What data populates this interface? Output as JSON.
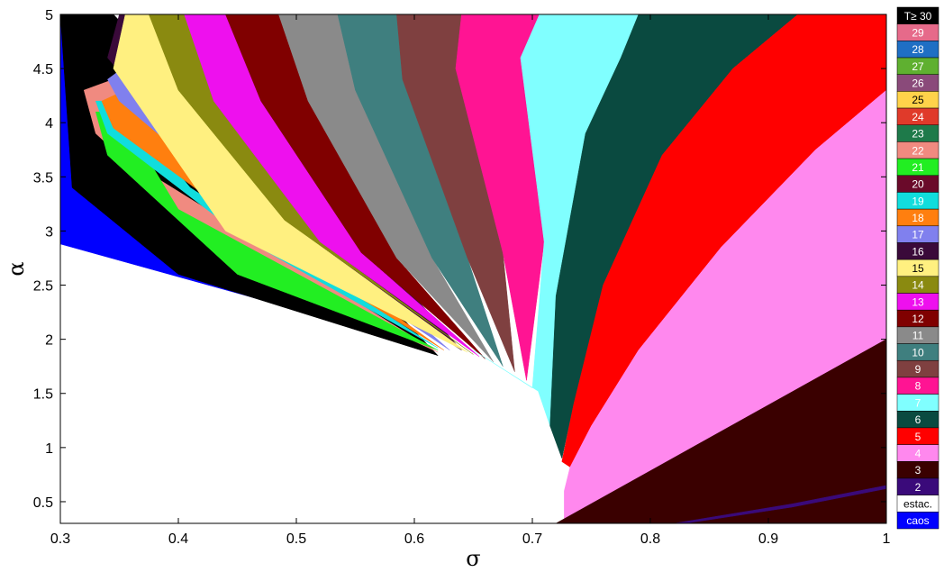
{
  "chart_data": {
    "type": "heatmap",
    "xlabel": "σ",
    "ylabel": "α",
    "xlim": [
      0.3,
      1
    ],
    "ylim": [
      0.3,
      5
    ],
    "xticks": [
      "0.3",
      "0.4",
      "0.5",
      "0.6",
      "0.7",
      "0.8",
      "0.9",
      "1"
    ],
    "yticks": [
      "0.5",
      "1",
      "1.5",
      "2",
      "2.5",
      "3",
      "3.5",
      "4",
      "4.5",
      "5"
    ],
    "legend": [
      {
        "label": "T≥ 30",
        "color": "#000000",
        "text_color": "#ffffff"
      },
      {
        "label": "29",
        "color": "#e66a8a",
        "text_color": "#ffffff"
      },
      {
        "label": "28",
        "color": "#1f6fc4",
        "text_color": "#ffffff"
      },
      {
        "label": "27",
        "color": "#5fb030",
        "text_color": "#ffffff"
      },
      {
        "label": "26",
        "color": "#8a4a7a",
        "text_color": "#ffffff"
      },
      {
        "label": "25",
        "color": "#ffd24a",
        "text_color": "#000000"
      },
      {
        "label": "24",
        "color": "#e03a2a",
        "text_color": "#ffffff"
      },
      {
        "label": "23",
        "color": "#1e7a4a",
        "text_color": "#ffffff"
      },
      {
        "label": "22",
        "color": "#f08a80",
        "text_color": "#ffffff"
      },
      {
        "label": "21",
        "color": "#22ee22",
        "text_color": "#ffffff"
      },
      {
        "label": "20",
        "color": "#6a0a2a",
        "text_color": "#ffffff"
      },
      {
        "label": "19",
        "color": "#11dddd",
        "text_color": "#ffffff"
      },
      {
        "label": "18",
        "color": "#ff7f0f",
        "text_color": "#ffffff"
      },
      {
        "label": "17",
        "color": "#8080ee",
        "text_color": "#ffffff"
      },
      {
        "label": "16",
        "color": "#3a0a3a",
        "text_color": "#ffffff"
      },
      {
        "label": "15",
        "color": "#fff080",
        "text_color": "#000000"
      },
      {
        "label": "14",
        "color": "#8a8a10",
        "text_color": "#ffffff"
      },
      {
        "label": "13",
        "color": "#ee10ee",
        "text_color": "#ffffff"
      },
      {
        "label": "12",
        "color": "#800000",
        "text_color": "#ffffff"
      },
      {
        "label": "11",
        "color": "#8a8a8a",
        "text_color": "#ffffff"
      },
      {
        "label": "10",
        "color": "#3f7f7f",
        "text_color": "#ffffff"
      },
      {
        "label": "9",
        "color": "#7f4040",
        "text_color": "#ffffff"
      },
      {
        "label": "8",
        "color": "#ff1493",
        "text_color": "#ffffff"
      },
      {
        "label": "7",
        "color": "#80ffff",
        "text_color": "#ffffff"
      },
      {
        "label": "6",
        "color": "#0a4a40",
        "text_color": "#ffffff"
      },
      {
        "label": "5",
        "color": "#ff0000",
        "text_color": "#ffffff"
      },
      {
        "label": "4",
        "color": "#ff88ee",
        "text_color": "#ffffff"
      },
      {
        "label": "3",
        "color": "#3a0000",
        "text_color": "#ffffff"
      },
      {
        "label": "2",
        "color": "#3a0a7a",
        "text_color": "#ffffff"
      },
      {
        "label": "estac.",
        "color": "#ffffff",
        "text_color": "#000000"
      },
      {
        "label": "caos",
        "color": "#0000ff",
        "text_color": "#ffffff"
      }
    ],
    "regions": [
      {
        "period": "caos",
        "color": "#0000ff",
        "points": [
          [
            0.3,
            5
          ],
          [
            0.3,
            2.88
          ],
          [
            0.475,
            2.35
          ],
          [
            0.58,
            2.0
          ],
          [
            0.56,
            2.18
          ],
          [
            0.42,
            3.7
          ],
          [
            0.34,
            5
          ]
        ]
      },
      {
        "period": "T≥ 30",
        "color": "#000000",
        "points": [
          [
            0.3,
            5
          ],
          [
            0.31,
            3.4
          ],
          [
            0.4,
            2.6
          ],
          [
            0.62,
            1.85
          ],
          [
            0.345,
            5
          ]
        ]
      },
      {
        "period": "22",
        "color": "#f08a80",
        "points": [
          [
            0.32,
            4.3
          ],
          [
            0.33,
            3.9
          ],
          [
            0.44,
            2.8
          ],
          [
            0.62,
            1.88
          ],
          [
            0.38,
            3.5
          ],
          [
            0.345,
            4.4
          ]
        ]
      },
      {
        "period": "21",
        "color": "#22ee22",
        "points": [
          [
            0.33,
            4.1
          ],
          [
            0.34,
            3.7
          ],
          [
            0.45,
            2.6
          ],
          [
            0.62,
            1.9
          ],
          [
            0.4,
            3.2
          ],
          [
            0.35,
            4.1
          ]
        ]
      },
      {
        "period": "19",
        "color": "#11dddd",
        "points": [
          [
            0.33,
            4.2
          ],
          [
            0.34,
            3.9
          ],
          [
            0.46,
            2.9
          ],
          [
            0.62,
            1.92
          ],
          [
            0.41,
            3.4
          ],
          [
            0.35,
            4.2
          ]
        ]
      },
      {
        "period": "18",
        "color": "#ff7f0f",
        "points": [
          [
            0.335,
            4.2
          ],
          [
            0.345,
            3.95
          ],
          [
            0.47,
            2.95
          ],
          [
            0.625,
            1.9
          ],
          [
            0.42,
            3.5
          ],
          [
            0.355,
            4.3
          ]
        ]
      },
      {
        "period": "17",
        "color": "#8080ee",
        "points": [
          [
            0.34,
            4.4
          ],
          [
            0.35,
            4.2
          ],
          [
            0.48,
            3.0
          ],
          [
            0.63,
            1.9
          ],
          [
            0.44,
            3.7
          ],
          [
            0.365,
            4.6
          ]
        ]
      },
      {
        "period": "16",
        "color": "#3a0a3a",
        "points": [
          [
            0.35,
            5
          ],
          [
            0.34,
            4.6
          ],
          [
            0.45,
            3.2
          ],
          [
            0.64,
            1.9
          ],
          [
            0.39,
            5
          ]
        ]
      },
      {
        "period": "15",
        "color": "#fff080",
        "points": [
          [
            0.355,
            5
          ],
          [
            0.345,
            4.5
          ],
          [
            0.44,
            3.0
          ],
          [
            0.645,
            1.88
          ],
          [
            0.49,
            3.1
          ],
          [
            0.4,
            4.3
          ],
          [
            0.375,
            5
          ]
        ]
      },
      {
        "period": "14",
        "color": "#8a8a10",
        "points": [
          [
            0.375,
            5
          ],
          [
            0.4,
            4.3
          ],
          [
            0.49,
            3.1
          ],
          [
            0.65,
            1.86
          ],
          [
            0.52,
            2.9
          ],
          [
            0.43,
            4.2
          ],
          [
            0.405,
            5
          ]
        ]
      },
      {
        "period": "13",
        "color": "#ee10ee",
        "points": [
          [
            0.405,
            5
          ],
          [
            0.43,
            4.2
          ],
          [
            0.52,
            2.9
          ],
          [
            0.655,
            1.84
          ],
          [
            0.555,
            2.8
          ],
          [
            0.47,
            4.2
          ],
          [
            0.44,
            5
          ]
        ]
      },
      {
        "period": "12",
        "color": "#800000",
        "points": [
          [
            0.44,
            5
          ],
          [
            0.47,
            4.2
          ],
          [
            0.555,
            2.8
          ],
          [
            0.66,
            1.82
          ],
          [
            0.585,
            2.75
          ],
          [
            0.51,
            4.2
          ],
          [
            0.485,
            5
          ]
        ]
      },
      {
        "period": "11",
        "color": "#8a8a8a",
        "points": [
          [
            0.485,
            5
          ],
          [
            0.51,
            4.2
          ],
          [
            0.585,
            2.75
          ],
          [
            0.667,
            1.79
          ],
          [
            0.615,
            2.75
          ],
          [
            0.55,
            4.3
          ],
          [
            0.535,
            5
          ]
        ]
      },
      {
        "period": "10",
        "color": "#3f7f7f",
        "points": [
          [
            0.535,
            5
          ],
          [
            0.55,
            4.3
          ],
          [
            0.615,
            2.75
          ],
          [
            0.675,
            1.75
          ],
          [
            0.645,
            2.75
          ],
          [
            0.59,
            4.4
          ],
          [
            0.585,
            5
          ]
        ]
      },
      {
        "period": "9",
        "color": "#7f4040",
        "points": [
          [
            0.585,
            5
          ],
          [
            0.59,
            4.4
          ],
          [
            0.645,
            2.75
          ],
          [
            0.685,
            1.7
          ],
          [
            0.675,
            2.8
          ],
          [
            0.635,
            4.5
          ],
          [
            0.64,
            5
          ]
        ]
      },
      {
        "period": "8",
        "color": "#ff1493",
        "points": [
          [
            0.64,
            5
          ],
          [
            0.635,
            4.5
          ],
          [
            0.675,
            2.8
          ],
          [
            0.695,
            1.62
          ],
          [
            0.71,
            2.9
          ],
          [
            0.69,
            4.6
          ],
          [
            0.706,
            5
          ]
        ]
      },
      {
        "period": "7",
        "color": "#80ffff",
        "points": [
          [
            0.706,
            5
          ],
          [
            0.69,
            4.6
          ],
          [
            0.71,
            2.9
          ],
          [
            0.7,
            1.55
          ],
          [
            0.65,
            1.9
          ],
          [
            0.705,
            1.52
          ],
          [
            0.715,
            1.2
          ],
          [
            0.72,
            2.4
          ],
          [
            0.745,
            3.9
          ],
          [
            0.775,
            4.6
          ],
          [
            0.79,
            5
          ]
        ]
      },
      {
        "period": "6",
        "color": "#0a4a40",
        "points": [
          [
            0.79,
            5
          ],
          [
            0.775,
            4.6
          ],
          [
            0.745,
            3.9
          ],
          [
            0.72,
            2.4
          ],
          [
            0.715,
            1.2
          ],
          [
            0.725,
            0.9
          ],
          [
            0.735,
            1.4
          ],
          [
            0.76,
            2.5
          ],
          [
            0.81,
            3.7
          ],
          [
            0.87,
            4.5
          ],
          [
            0.925,
            5
          ]
        ]
      },
      {
        "period": "5",
        "color": "#ff0000",
        "points": [
          [
            0.925,
            5
          ],
          [
            0.87,
            4.5
          ],
          [
            0.81,
            3.7
          ],
          [
            0.76,
            2.5
          ],
          [
            0.735,
            1.4
          ],
          [
            0.725,
            0.87
          ],
          [
            0.732,
            0.82
          ],
          [
            0.75,
            1.2
          ],
          [
            0.79,
            1.9
          ],
          [
            0.86,
            2.85
          ],
          [
            0.94,
            3.75
          ],
          [
            1,
            4.3
          ],
          [
            1,
            5
          ]
        ]
      },
      {
        "period": "4",
        "color": "#ff88ee",
        "points": [
          [
            1,
            4.3
          ],
          [
            0.94,
            3.75
          ],
          [
            0.86,
            2.85
          ],
          [
            0.79,
            1.9
          ],
          [
            0.75,
            1.2
          ],
          [
            0.732,
            0.82
          ],
          [
            0.727,
            0.6
          ],
          [
            0.727,
            0.3
          ],
          [
            0.735,
            0.3
          ],
          [
            1,
            2.0
          ]
        ]
      },
      {
        "period": "3",
        "color": "#3a0000",
        "points": [
          [
            0.72,
            0.3
          ],
          [
            1,
            2.0
          ],
          [
            1,
            0.3
          ]
        ]
      },
      {
        "period": "2",
        "color": "#3a0a7a",
        "points": [
          [
            0.82,
            0.3
          ],
          [
            0.92,
            0.48
          ],
          [
            1,
            0.65
          ],
          [
            1,
            0.62
          ],
          [
            0.92,
            0.45
          ],
          [
            0.83,
            0.3
          ]
        ]
      }
    ]
  }
}
